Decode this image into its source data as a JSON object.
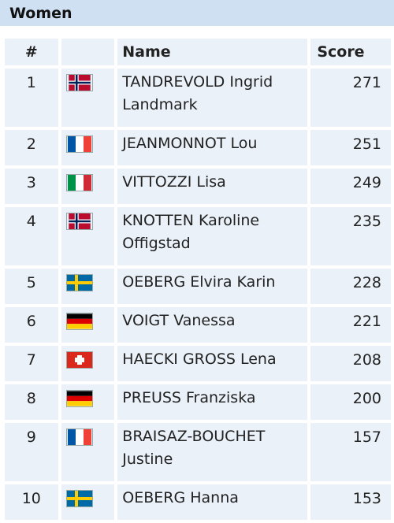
{
  "section": {
    "title": "Women"
  },
  "columns": {
    "rank": "#",
    "flag": "",
    "name": "Name",
    "score": "Score"
  },
  "rows": [
    {
      "rank": "1",
      "country": "norway",
      "name": "TANDREVOLD Ingrid Landmark",
      "score": "271"
    },
    {
      "rank": "2",
      "country": "france",
      "name": "JEANMONNOT Lou",
      "score": "251"
    },
    {
      "rank": "3",
      "country": "italy",
      "name": "VITTOZZI Lisa",
      "score": "249"
    },
    {
      "rank": "4",
      "country": "norway",
      "name": "KNOTTEN Karoline Offigstad",
      "score": "235"
    },
    {
      "rank": "5",
      "country": "sweden",
      "name": "OEBERG Elvira Karin",
      "score": "228"
    },
    {
      "rank": "6",
      "country": "germany",
      "name": "VOIGT Vanessa",
      "score": "221"
    },
    {
      "rank": "7",
      "country": "switzerland",
      "name": "HAECKI GROSS Lena",
      "score": "208"
    },
    {
      "rank": "8",
      "country": "germany",
      "name": "PREUSS Franziska",
      "score": "200"
    },
    {
      "rank": "9",
      "country": "france",
      "name": "BRAISAZ-BOUCHET Justine",
      "score": "157"
    },
    {
      "rank": "10",
      "country": "sweden",
      "name": "OEBERG Hanna",
      "score": "153"
    }
  ]
}
